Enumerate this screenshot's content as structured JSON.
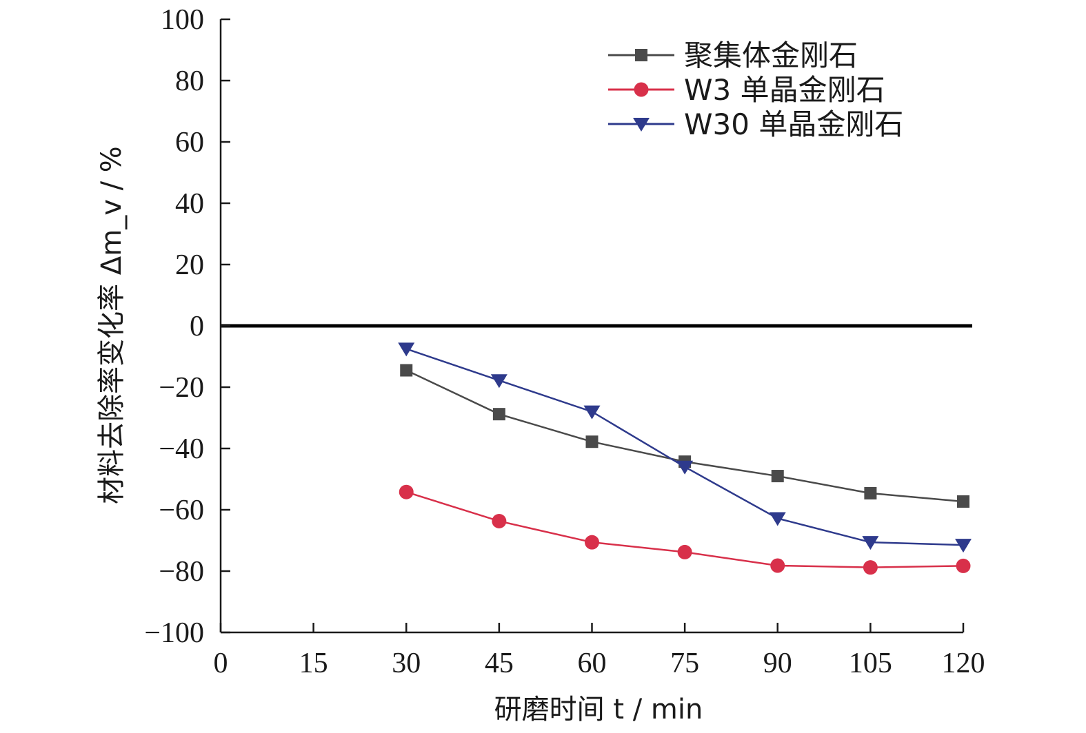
{
  "chart_data": {
    "type": "line",
    "xlabel": "研磨时间 t / min",
    "ylabel": "材料去除率变化率 Δm_v / %",
    "xlim": [
      0,
      120
    ],
    "ylim": [
      -100,
      100
    ],
    "xticks": [
      0,
      15,
      30,
      45,
      60,
      75,
      90,
      105,
      120
    ],
    "yticks": [
      100,
      80,
      60,
      40,
      20,
      0,
      -20,
      -40,
      -60,
      -80,
      -100
    ],
    "reference_line_y": 0,
    "legend_position": "top-right",
    "x": [
      30,
      45,
      60,
      75,
      90,
      105,
      120
    ],
    "series": [
      {
        "name": "聚集体金刚石",
        "marker": "square",
        "color": "#4a4a4a",
        "values": [
          -14.5,
          -28.8,
          -37.8,
          -44.3,
          -49.0,
          -54.6,
          -57.3
        ]
      },
      {
        "name": "W3 单晶金刚石",
        "marker": "circle",
        "color": "#d8304a",
        "values": [
          -54.2,
          -63.7,
          -70.6,
          -73.8,
          -78.2,
          -78.8,
          -78.3
        ]
      },
      {
        "name": "W30 单晶金刚石",
        "marker": "triangle-down",
        "color": "#2e3a8c",
        "values": [
          -7.5,
          -17.8,
          -28.0,
          -46.0,
          -62.8,
          -70.6,
          -71.5
        ]
      }
    ]
  }
}
